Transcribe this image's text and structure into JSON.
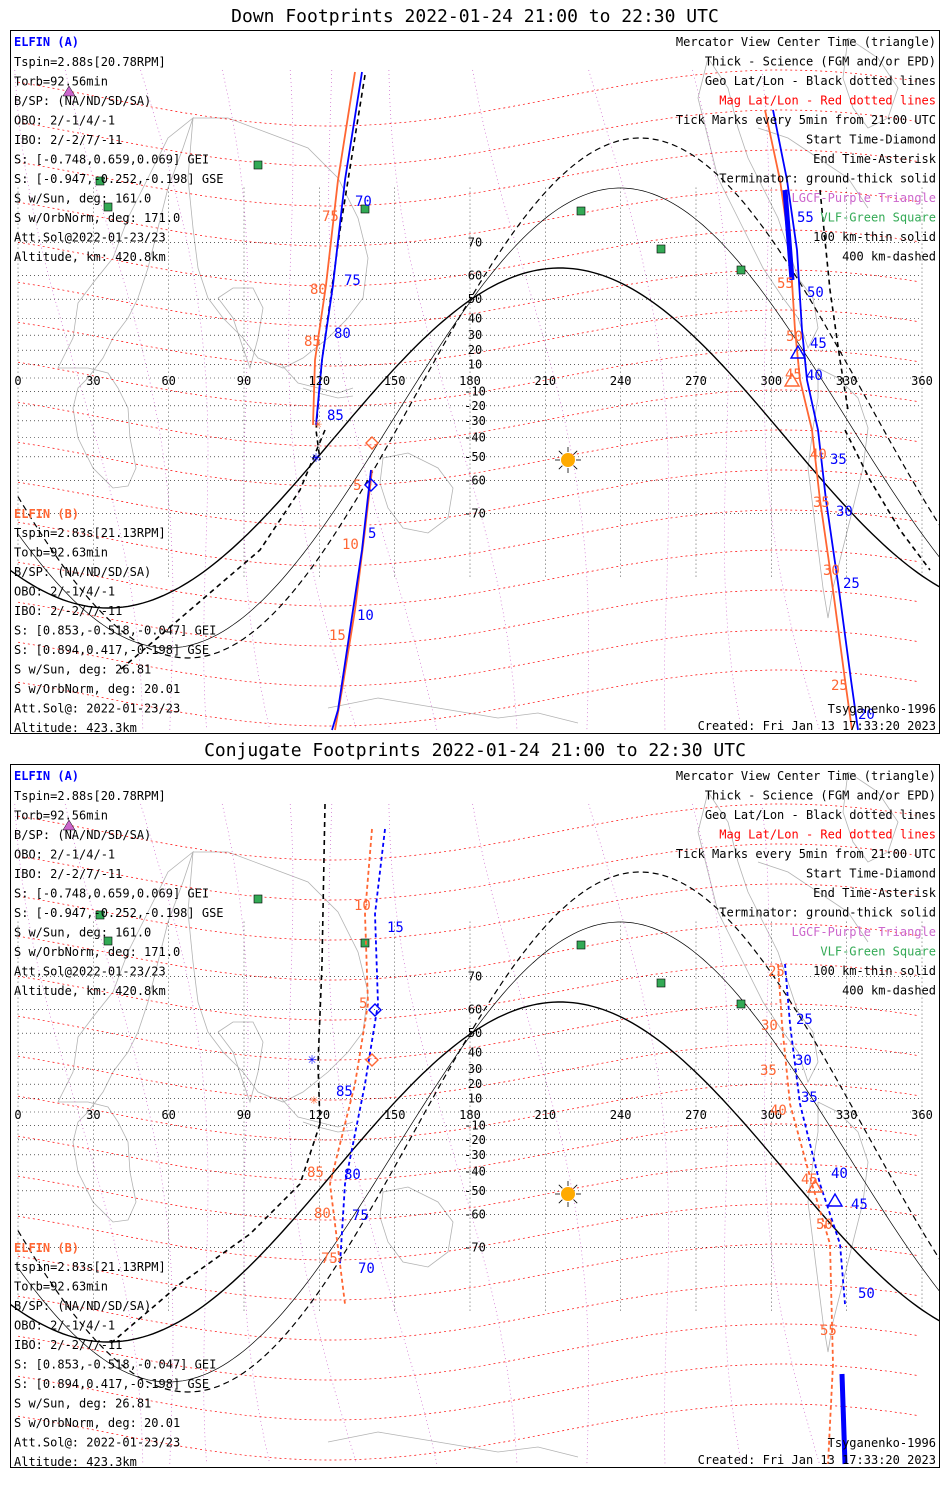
{
  "panels": [
    {
      "title": "Down Footprints 2022-01-24 21:00 to 22:30 UTC",
      "elfin_a": {
        "header": "ELFIN (A)",
        "lines": [
          "Tspin=2.88s[20.78RPM]",
          "Torb=92.56min",
          "B/SP: (NA/ND/SD/SA)",
          "OBO: 2/-1/4/-1",
          "IBO: 2/-2/7/-11",
          "S: [-0.748,0.659,0.069] GEI",
          "S: [-0.947,-0.252,-0.198] GSE",
          "S w/Sun, deg: 161.0",
          "S w/OrbNorm, deg: 171.0",
          "Att.Sol@2022-01-23/23",
          "Altitude, km: 420.8km"
        ]
      },
      "elfin_b": {
        "header": "ELFIN (B)",
        "lines": [
          "Tspin=2.83s[21.13RPM]",
          "Torb=92.63min",
          "B/SP: (NA/ND/SD/SA)",
          "OBO: 2/-1/4/-1",
          "IBO: 2/-2/7/-11",
          "S: [0.853,-0.518,-0.047] GEI",
          "S: [0.894,0.417,-0.198] GSE",
          "S w/Sun, deg: 26.81",
          "S w/OrbNorm, deg: 20.01",
          "Att.Sol@: 2022-01-23/23",
          "Altitude: 423.3km"
        ]
      },
      "labels_a": [
        [
          "70",
          355,
          176
        ],
        [
          "75",
          344,
          255
        ],
        [
          "80",
          334,
          308
        ],
        [
          "85",
          327,
          390
        ],
        [
          "5",
          368,
          508
        ],
        [
          "10",
          357,
          590
        ],
        [
          "55",
          797,
          192
        ],
        [
          "50",
          807,
          267
        ],
        [
          "45",
          810,
          318
        ],
        [
          "40",
          806,
          350
        ],
        [
          "35",
          830,
          434
        ],
        [
          "30",
          836,
          486
        ],
        [
          "25",
          843,
          558
        ],
        [
          "20",
          858,
          689
        ]
      ],
      "labels_b": [
        [
          "75",
          322,
          191
        ],
        [
          "80",
          310,
          264
        ],
        [
          "85",
          304,
          316
        ],
        [
          "5",
          353,
          460
        ],
        [
          "10",
          342,
          519
        ],
        [
          "15",
          329,
          610
        ],
        [
          "55",
          777,
          258
        ],
        [
          "50",
          786,
          311
        ],
        [
          "45",
          785,
          349
        ],
        [
          "40",
          810,
          429
        ],
        [
          "35",
          813,
          477
        ],
        [
          "30",
          823,
          545
        ],
        [
          "25",
          831,
          660
        ]
      ]
    },
    {
      "title": "Conjugate Footprints 2022-01-24 21:00 to 22:30 UTC",
      "elfin_a": {
        "header": "ELFIN (A)",
        "lines": [
          "Tspin=2.88s[20.78RPM]",
          "Torb=92.56min",
          "B/SP: (NA/ND/SD/SA)",
          "OBO: 2/-1/4/-1",
          "IBO: 2/-2/7/-11",
          "S: [-0.748,0.659,0.069] GEI",
          "S: [-0.947,-0.252,-0.198] GSE",
          "S w/Sun, deg: 161.0",
          "S w/OrbNorm, deg: 171.0",
          "Att.Sol@2022-01-23/23",
          "Altitude, km: 420.8km"
        ]
      },
      "elfin_b": {
        "header": "ELFIN (B)",
        "lines": [
          "tspin=2.83s[21.13RPM]",
          "Torb=92.63min",
          "B/SP: (NA/ND/SD/SA)",
          "OBO: 2/-1/4/-1",
          "IBO: 2/-2/7/-11",
          "S: [0.853,-0.518,-0.047] GEI",
          "S: [0.894,0.417,-0.198] GSE",
          "S w/Sun, deg: 26.81",
          "S w/OrbNorm, deg: 20.01",
          "Att.Sol@: 2022-01-23/23",
          "Altitude: 423.3km"
        ]
      },
      "labels_a": [
        [
          "15",
          387,
          168
        ],
        [
          "85",
          336,
          332
        ],
        [
          "80",
          344,
          415
        ],
        [
          "75",
          352,
          456
        ],
        [
          "70",
          358,
          509
        ],
        [
          "25",
          796,
          260
        ],
        [
          "30",
          795,
          301
        ],
        [
          "35",
          801,
          338
        ],
        [
          "40",
          831,
          414
        ],
        [
          "45",
          851,
          445
        ],
        [
          "50",
          858,
          534
        ]
      ],
      "labels_b": [
        [
          "10",
          354,
          146
        ],
        [
          "5",
          359,
          244
        ],
        [
          "85",
          307,
          413
        ],
        [
          "80",
          314,
          454
        ],
        [
          "75",
          321,
          499
        ],
        [
          "25",
          768,
          212
        ],
        [
          "30",
          761,
          266
        ],
        [
          "35",
          760,
          311
        ],
        [
          "40",
          770,
          351
        ],
        [
          "45",
          801,
          420
        ],
        [
          "50",
          816,
          465
        ],
        [
          "55",
          820,
          571
        ]
      ]
    }
  ],
  "legend": [
    {
      "text": "Mercator View Center Time (triangle)",
      "color": "#000000"
    },
    {
      "text": "Thick - Science (FGM and/or EPD)",
      "color": "#000000"
    },
    {
      "text": "Geo Lat/Lon - Black dotted lines",
      "color": "#000000"
    },
    {
      "text": "Mag Lat/Lon - Red dotted lines",
      "color": "#ff0000"
    },
    {
      "text": "Tick Marks every 5min from 21:00 UTC",
      "color": "#000000"
    },
    {
      "text": "Start Time-Diamond",
      "color": "#000000"
    },
    {
      "text": "End Time-Asterisk",
      "color": "#000000"
    },
    {
      "text": "Terminator: ground-thick solid",
      "color": "#000000"
    },
    {
      "text": "LGCF-Purple Triangle",
      "color": "#cc66cc"
    },
    {
      "text": "VLF-Green Square",
      "color": "#33aa55"
    },
    {
      "text": "100 km-thin solid",
      "color": "#000000"
    },
    {
      "text": "400 km-dashed",
      "color": "#000000"
    }
  ],
  "credit": "Tsyganenko-1996",
  "created": "Created: Fri Jan 13 17:33:20 2023",
  "lon_ticks": [
    "0",
    "30",
    "60",
    "90",
    "120",
    "150",
    "180",
    "210",
    "240",
    "270",
    "300",
    "330",
    "360"
  ],
  "lat_ticks": [
    "70",
    "60",
    "50",
    "40",
    "30",
    "20",
    "10",
    "-10",
    "-20",
    "-30",
    "-40",
    "-50",
    "-60",
    "-70"
  ],
  "colors": {
    "elfin_a": "#0000ff",
    "elfin_b": "#ff6633",
    "mag_grid": "#ff0000",
    "geo_grid": "#000000",
    "vlf": "#33aa55",
    "lgcf": "#cc66cc",
    "sun": "#ffaa00",
    "coast": "#b3b3b3"
  }
}
